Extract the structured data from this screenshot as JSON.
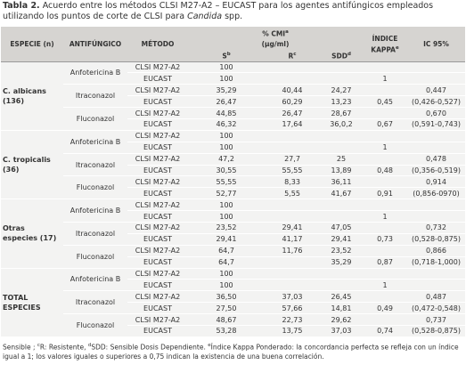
{
  "caption": {
    "label": "Tabla 2.",
    "text": "Acuerdo entre los métodos CLSI M27-A2 – EUCAST para los agentes antifúngicos empleados utilizando los puntos de corte de CLSI para",
    "genus": "Candida",
    "tail": "spp."
  },
  "header": {
    "species": "ESPECIE (n)",
    "drug": "ANTIFÚNGICO",
    "method": "MÉTODO",
    "cmi": "% CMI",
    "cmi_sup": "a",
    "cmi_unit": "(μg/ml)",
    "kappa": "ÍNDICE KAPPA",
    "kappa_sup": "e",
    "ic": "IC 95%",
    "s": "S",
    "s_sup": "b",
    "r": "R",
    "r_sup": "c",
    "sdd": "SDD",
    "sdd_sup": "d"
  },
  "groups": [
    {
      "species": "C. albicans (136)",
      "drugs": [
        {
          "name": "Anfotericina B",
          "kappa": "1",
          "ic": null,
          "ic_range": null,
          "rows": [
            {
              "method": "CLSI M27-A2",
              "s": "100",
              "r": null,
              "sdd": null
            },
            {
              "method": "EUCAST",
              "s": "100",
              "r": null,
              "sdd": null
            }
          ]
        },
        {
          "name": "Itraconazol",
          "kappa": "0,45",
          "ic": "0,447",
          "ic_range": "(0,426-0,527)",
          "rows": [
            {
              "method": "CLSI M27-A2",
              "s": "35,29",
              "r": "40,44",
              "sdd": "24,27"
            },
            {
              "method": "EUCAST",
              "s": "26,47",
              "r": "60,29",
              "sdd": "13,23"
            }
          ]
        },
        {
          "name": "Fluconazol",
          "kappa": "0,67",
          "ic": "0,670",
          "ic_range": "(0,591-0,743)",
          "rows": [
            {
              "method": "CLSI M27-A2",
              "s": "44,85",
              "r": "26,47",
              "sdd": "28,67"
            },
            {
              "method": "EUCAST",
              "s": "46,32",
              "r": "17,64",
              "sdd": "36,0,2"
            }
          ]
        }
      ]
    },
    {
      "species": "C. tropicalis (36)",
      "drugs": [
        {
          "name": "Anfotericina B",
          "kappa": "1",
          "ic": null,
          "ic_range": null,
          "rows": [
            {
              "method": "CLSI M27-A2",
              "s": "100",
              "r": null,
              "sdd": null
            },
            {
              "method": "EUCAST",
              "s": "100",
              "r": null,
              "sdd": null
            }
          ]
        },
        {
          "name": "Itraconazol",
          "kappa": "0,48",
          "ic": "0,478",
          "ic_range": "(0,356-0,519)",
          "rows": [
            {
              "method": "CLSI M27-A2",
              "s": "47,2",
              "r": "27,7",
              "sdd": "25"
            },
            {
              "method": "EUCAST",
              "s": "30,55",
              "r": "55,55",
              "sdd": "13,89"
            }
          ]
        },
        {
          "name": "Fluconazol",
          "kappa": "0,91",
          "ic": "0,914",
          "ic_range": "(0,856-0970)",
          "rows": [
            {
              "method": "CLSI M27-A2",
              "s": "55,55",
              "r": "8,33",
              "sdd": "36,11"
            },
            {
              "method": "EUCAST",
              "s": "52,77",
              "r": "5,55",
              "sdd": "41,67"
            }
          ]
        }
      ]
    },
    {
      "species": "Otras especies (17)",
      "drugs": [
        {
          "name": "Anfotericina B",
          "kappa": "1",
          "ic": null,
          "ic_range": null,
          "rows": [
            {
              "method": "CLSI M27-A2",
              "s": "100",
              "r": null,
              "sdd": null
            },
            {
              "method": "EUCAST",
              "s": "100",
              "r": null,
              "sdd": null
            }
          ]
        },
        {
          "name": "Itraconazol",
          "kappa": "0,73",
          "ic": "0,732",
          "ic_range": "(0,528-0,875)",
          "rows": [
            {
              "method": "CLSI M27-A2",
              "s": "23,52",
              "r": "29,41",
              "sdd": "47,05"
            },
            {
              "method": "EUCAST",
              "s": "29,41",
              "r": "41,17",
              "sdd": "29,41"
            }
          ]
        },
        {
          "name": "Fluconazol",
          "kappa": "0,87",
          "ic": "0,866",
          "ic_range": "(0,718-1,000)",
          "rows": [
            {
              "method": "CLSI M27-A2",
              "s": "64,7",
              "r": "11,76",
              "sdd": "23,52"
            },
            {
              "method": "EUCAST",
              "s": "64,7",
              "r": null,
              "sdd": "35,29"
            }
          ]
        }
      ]
    },
    {
      "species": "TOTAL ESPECIES",
      "drugs": [
        {
          "name": "Anfotericina B",
          "kappa": "1",
          "ic": null,
          "ic_range": null,
          "rows": [
            {
              "method": "CLSI M27-A2",
              "s": "100",
              "r": null,
              "sdd": null
            },
            {
              "method": "EUCAST",
              "s": "100",
              "r": null,
              "sdd": null
            }
          ]
        },
        {
          "name": "Itraconazol",
          "kappa": "0,49",
          "ic": "0,487",
          "ic_range": "(0,472-0,548)",
          "rows": [
            {
              "method": "CLSI M27-A2",
              "s": "36,50",
              "r": "37,03",
              "sdd": "26,45"
            },
            {
              "method": "EUCAST",
              "s": "27,50",
              "r": "57,66",
              "sdd": "14,81"
            }
          ]
        },
        {
          "name": "Fluconazol",
          "kappa": "0,74",
          "ic": "0,737",
          "ic_range": "(0,528-0,875)",
          "rows": [
            {
              "method": "CLSI M27-A2",
              "s": "48,67",
              "r": "22,73",
              "sdd": "29,62"
            },
            {
              "method": "EUCAST",
              "s": "53,28",
              "r": "13,75",
              "sdd": "37,03"
            }
          ]
        }
      ]
    }
  ],
  "footnote": [
    {
      "text": "Sensible ;"
    },
    {
      "sup": "c",
      "text": "R: Resistente,"
    },
    {
      "sup": "d",
      "text": "SDD: Sensible Dosis Dependiente."
    },
    {
      "sup": "e",
      "text": "Índice Kappa Ponderado: la concordancia perfecta se refleja con un índice igual a 1; los valores iguales o superiores a 0,75 indican la existencia de una buena correlación."
    }
  ]
}
